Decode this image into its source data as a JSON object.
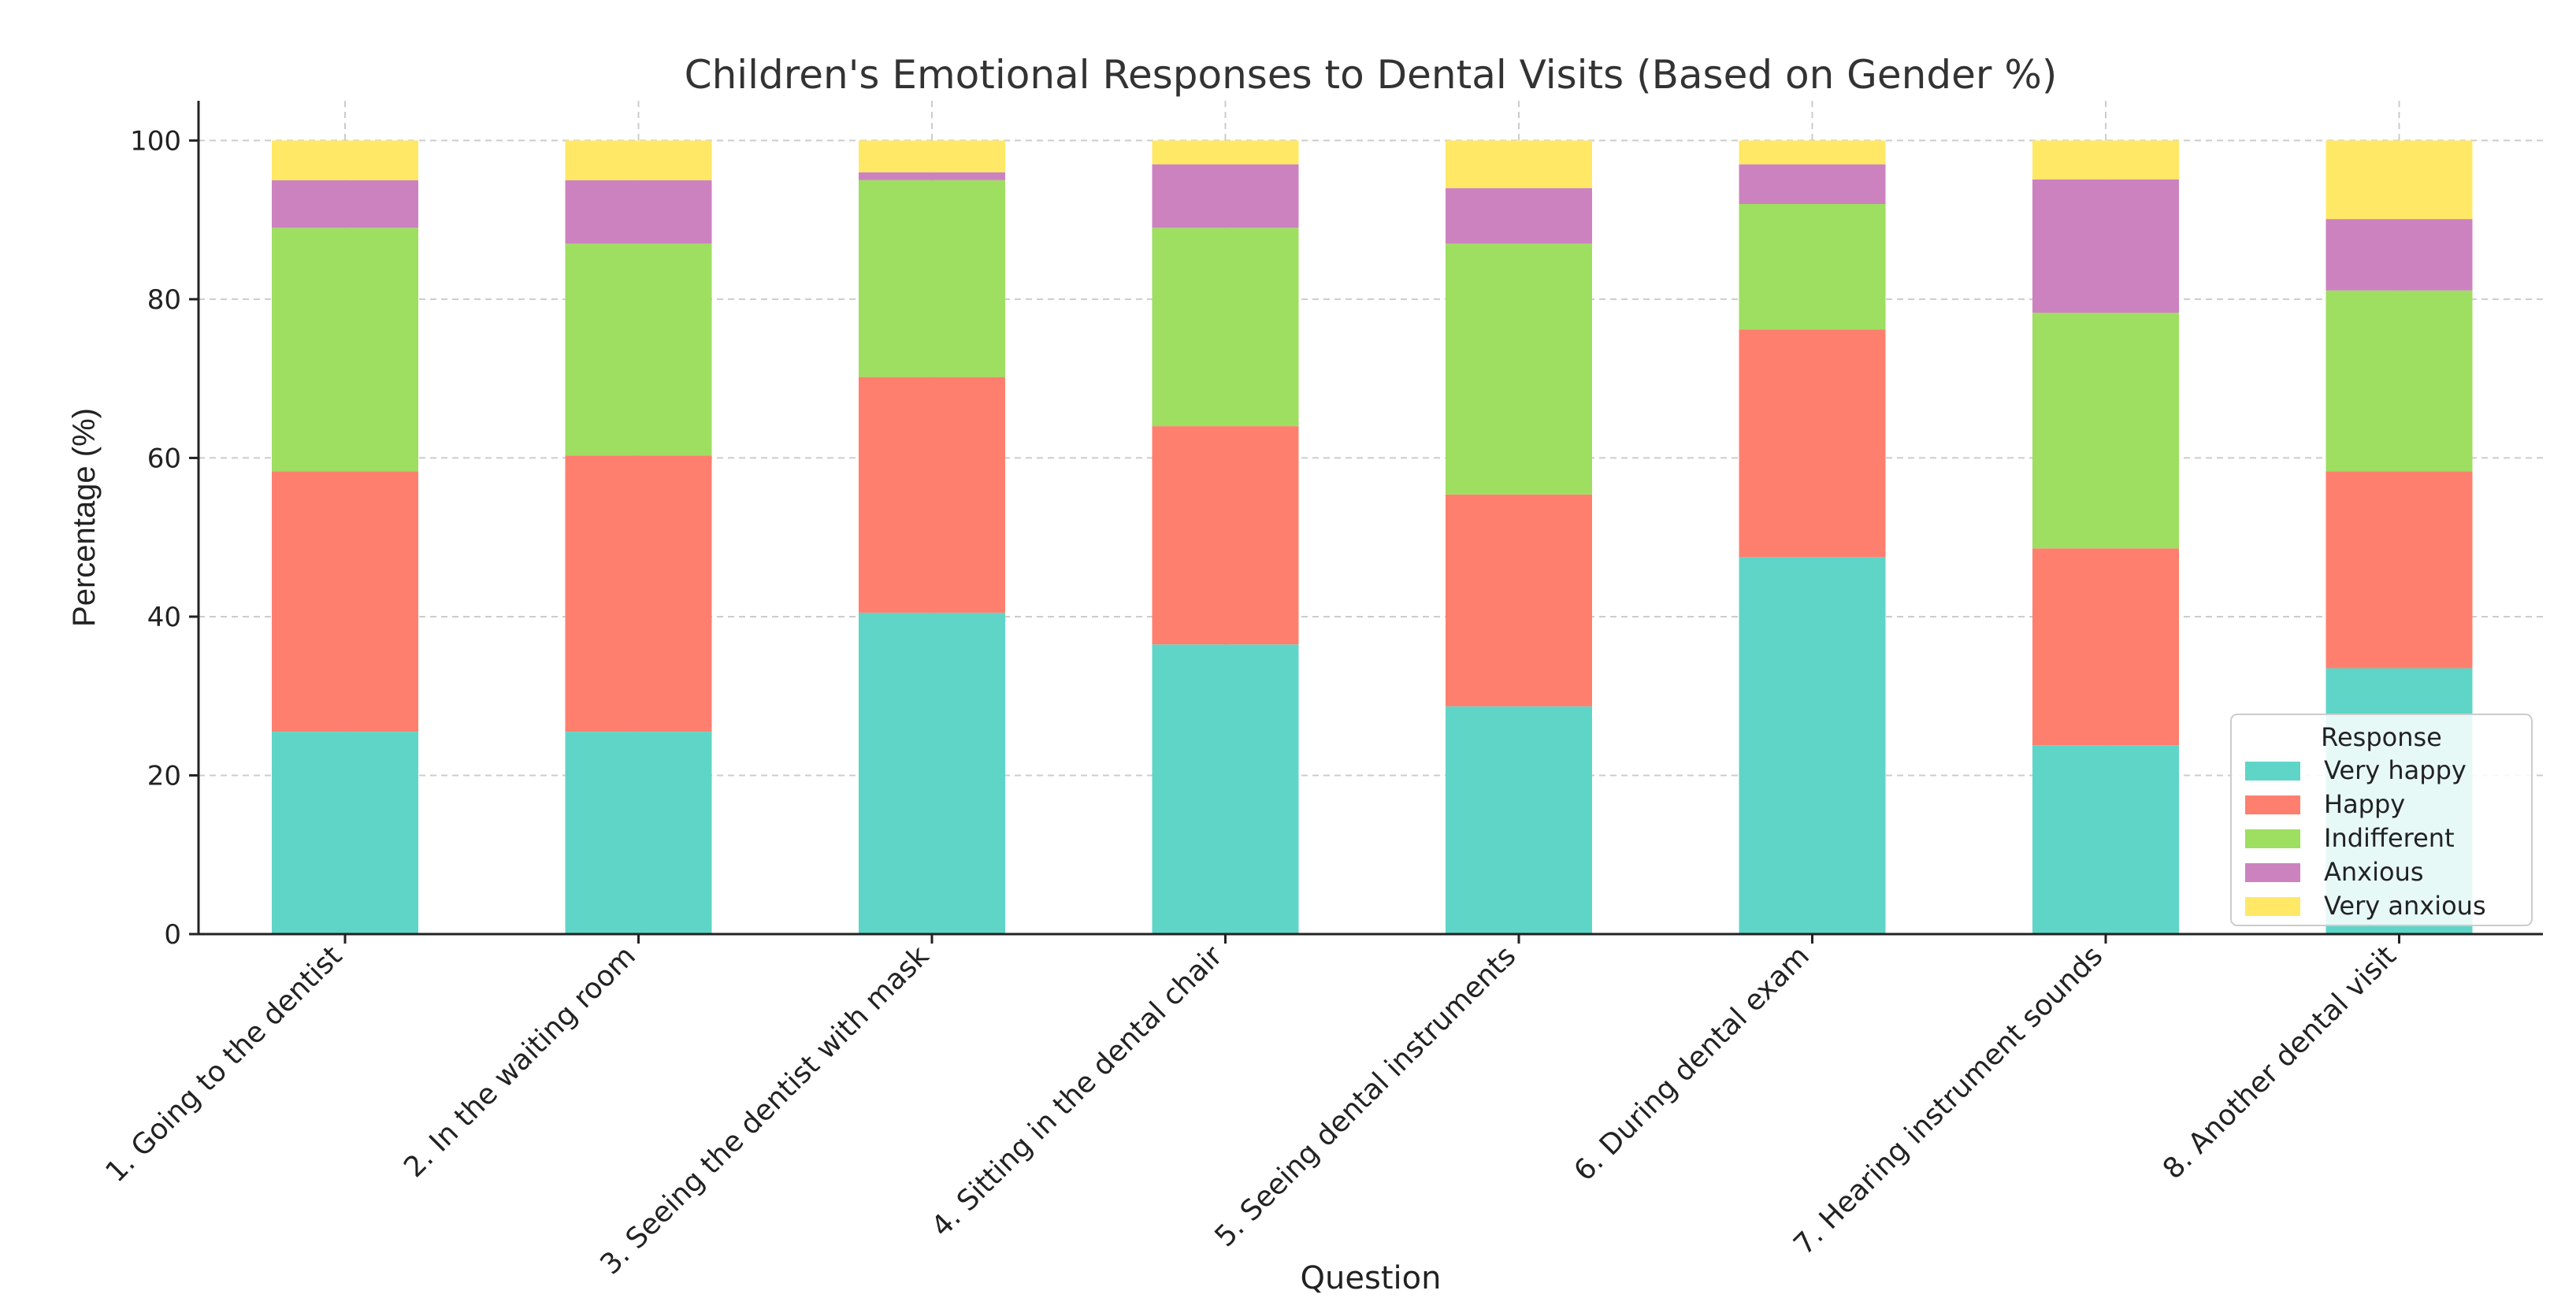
{
  "chart_data": {
    "type": "bar",
    "stacked": true,
    "title": "Children's Emotional Responses to Dental Visits (Based on Gender %)",
    "xlabel": "Question",
    "ylabel": "Percentage (%)",
    "ylim": [
      0,
      105
    ],
    "yticks": [
      "0",
      "20",
      "40",
      "60",
      "80",
      "100"
    ],
    "grid": true,
    "categories": [
      "1. Going to the dentist",
      "2. In the waiting room",
      "3. Seeing the dentist with mask",
      "4. Sitting in the dental chair",
      "5. Seeing dental instruments",
      "6. During dental exam",
      "7. Hearing instrument sounds",
      "8. Another dental visit"
    ],
    "series": [
      {
        "name": "Very happy",
        "color": "#5fd5c8",
        "values": [
          25.5,
          25.5,
          40.5,
          36.5,
          28.7,
          47.5,
          23.8,
          33.5
        ]
      },
      {
        "name": "Happy",
        "color": "#ff7f6f",
        "values": [
          32.8,
          34.8,
          29.7,
          27.5,
          26.7,
          28.7,
          24.8,
          24.8
        ]
      },
      {
        "name": "Indifferent",
        "color": "#9ede60",
        "values": [
          30.7,
          26.7,
          24.8,
          25.0,
          31.6,
          15.8,
          29.7,
          22.8
        ]
      },
      {
        "name": "Anxious",
        "color": "#cd82c0",
        "values": [
          6.0,
          8.0,
          1.0,
          8.0,
          7.0,
          5.0,
          16.8,
          9.0
        ]
      },
      {
        "name": "Very anxious",
        "color": "#ffe866",
        "values": [
          5.0,
          5.0,
          4.0,
          3.0,
          6.0,
          3.0,
          4.9,
          9.9
        ]
      }
    ],
    "legend": {
      "title": "Response",
      "placement": "lower-right"
    }
  }
}
